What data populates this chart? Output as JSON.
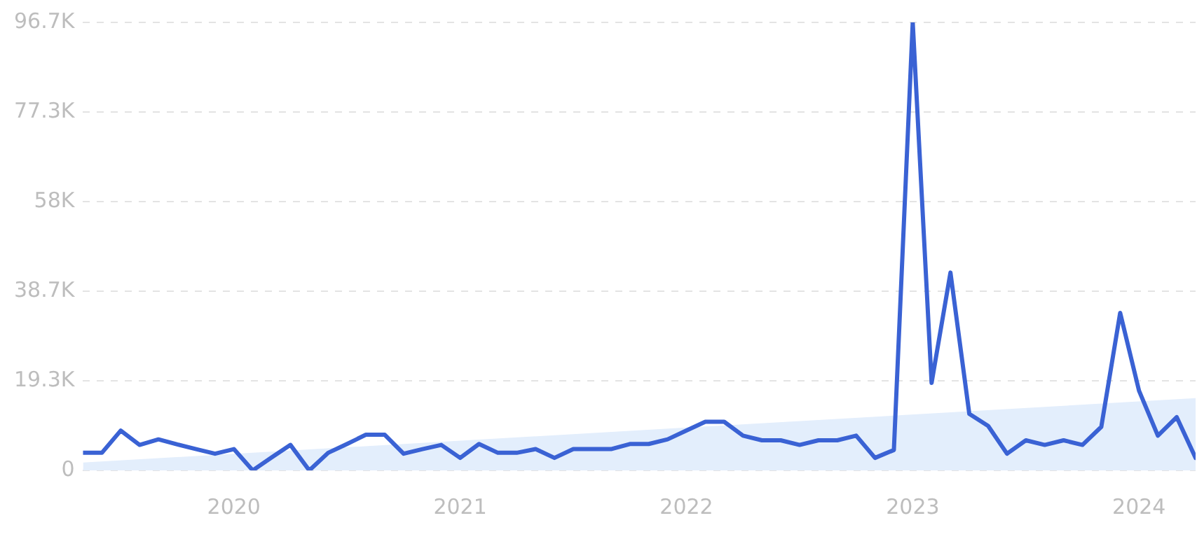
{
  "chart_data": {
    "type": "line",
    "xlim": [
      "2019-05",
      "2024-04"
    ],
    "xticks": [
      {
        "value": "2020-01",
        "label": "2020"
      },
      {
        "value": "2021-01",
        "label": "2021"
      },
      {
        "value": "2022-01",
        "label": "2022"
      },
      {
        "value": "2023-01",
        "label": "2023"
      },
      {
        "value": "2024-01",
        "label": "2024"
      }
    ],
    "ylim": [
      0,
      96700
    ],
    "yticks": [
      0,
      {
        "value": 19300,
        "label": "19.3K"
      },
      {
        "value": 38700,
        "label": "38.7K"
      },
      {
        "value": 58000,
        "label": "58K"
      },
      {
        "value": 77300,
        "label": "77.3K"
      },
      {
        "value": 96700,
        "label": "96.7K"
      }
    ],
    "grid": "y",
    "marker": "none",
    "series": [
      {
        "type": "area",
        "color": "#e3eefc",
        "x": [
          "2019-05",
          "2024-04"
        ],
        "values": [
          1700,
          15600
        ]
      },
      {
        "color": "#3a62d4",
        "line_style": "solid",
        "x": [
          "2019-05",
          "2019-06",
          "2019-07",
          "2019-08",
          "2019-09",
          "2019-10",
          "2019-11",
          "2019-12",
          "2020-01",
          "2020-02",
          "2020-03",
          "2020-04",
          "2020-05",
          "2020-06",
          "2020-07",
          "2020-08",
          "2020-09",
          "2020-10",
          "2020-11",
          "2020-12",
          "2021-01",
          "2021-02",
          "2021-03",
          "2021-04",
          "2021-05",
          "2021-06",
          "2021-07",
          "2021-08",
          "2021-09",
          "2021-10",
          "2021-11",
          "2021-12",
          "2022-01",
          "2022-02",
          "2022-03",
          "2022-04",
          "2022-05",
          "2022-06",
          "2022-07",
          "2022-08",
          "2022-09",
          "2022-10",
          "2022-11",
          "2022-12",
          "2023-01",
          "2023-02",
          "2023-03",
          "2023-04",
          "2023-05",
          "2023-06",
          "2023-07",
          "2023-08",
          "2023-09",
          "2023-10",
          "2023-11",
          "2023-12",
          "2024-01",
          "2024-02",
          "2024-03",
          "2024-04"
        ],
        "values": [
          3800,
          3800,
          8600,
          5500,
          6700,
          5600,
          4600,
          3600,
          4600,
          0,
          2800,
          5500,
          0,
          3800,
          5700,
          7700,
          7700,
          3600,
          4600,
          5500,
          2700,
          5700,
          3800,
          3800,
          4600,
          2700,
          4600,
          4600,
          4600,
          5700,
          5700,
          6700,
          8600,
          10500,
          10500,
          7500,
          6500,
          6500,
          5500,
          6500,
          6500,
          7500,
          2700,
          4400,
          96700,
          18900,
          42700,
          12200,
          9600,
          3600,
          6500,
          5500,
          6500,
          5500,
          9400,
          34000,
          17200,
          7500,
          11500,
          2700
        ]
      }
    ]
  }
}
